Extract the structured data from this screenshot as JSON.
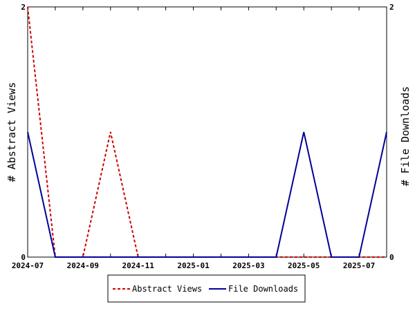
{
  "chart_data": {
    "type": "line",
    "x": [
      "2024-07",
      "2024-08",
      "2024-09",
      "2024-10",
      "2024-11",
      "2024-12",
      "2025-01",
      "2025-02",
      "2025-03",
      "2025-04",
      "2025-05",
      "2025-06",
      "2025-07",
      "2025-08"
    ],
    "x_tick_labels": [
      "2024-07",
      "2024-09",
      "2024-11",
      "2025-01",
      "2025-03",
      "2025-05",
      "2025-07"
    ],
    "series": [
      {
        "name": "Abstract Views",
        "axis": "left",
        "color": "#cc0000",
        "style": "dashed",
        "values": [
          2,
          0,
          0,
          1,
          0,
          0,
          0,
          0,
          0,
          0,
          0,
          0,
          0,
          0
        ]
      },
      {
        "name": "File Downloads",
        "axis": "right",
        "color": "#000099",
        "style": "solid",
        "values": [
          1,
          0,
          0,
          0,
          0,
          0,
          0,
          0,
          0,
          0,
          1,
          0,
          0,
          1
        ]
      }
    ],
    "ylabel": "# Abstract Views",
    "y2label": "# File Downloads",
    "ylim": [
      0,
      2
    ],
    "y2lim": [
      0,
      2
    ],
    "y_ticks": [
      "0",
      "2"
    ],
    "y2_ticks": [
      "0",
      "2"
    ],
    "grid": false,
    "legend_position": "bottom"
  }
}
